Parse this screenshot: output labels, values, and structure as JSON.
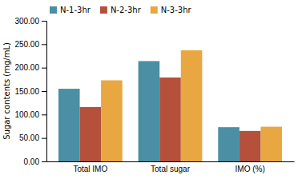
{
  "chart_data": {
    "type": "bar",
    "categories": [
      "Total IMO",
      "Total sugar",
      "IMO (%)"
    ],
    "series": [
      {
        "name": "N-1-3hr",
        "color": "#4a8fa3",
        "values": [
          155.0,
          214.0,
          73.0
        ]
      },
      {
        "name": "N-2-3hr",
        "color": "#b5503a",
        "values": [
          116.0,
          179.0,
          65.0
        ]
      },
      {
        "name": "N-3-3hr",
        "color": "#e8a741",
        "values": [
          173.0,
          237.0,
          74.0
        ]
      }
    ],
    "y_label": "Sugar contents (mg/mL)",
    "ylim": [
      0,
      300
    ],
    "yticks": [
      {
        "value": 0,
        "label": "0.00"
      },
      {
        "value": 50,
        "label": "50.00"
      },
      {
        "value": 100,
        "label": "100.00"
      },
      {
        "value": 150,
        "label": "150.00"
      },
      {
        "value": 200,
        "label": "200.00"
      },
      {
        "value": 250,
        "label": "250.00"
      },
      {
        "value": 300,
        "label": "300.00"
      }
    ],
    "grid": false,
    "legend": "upper left"
  }
}
